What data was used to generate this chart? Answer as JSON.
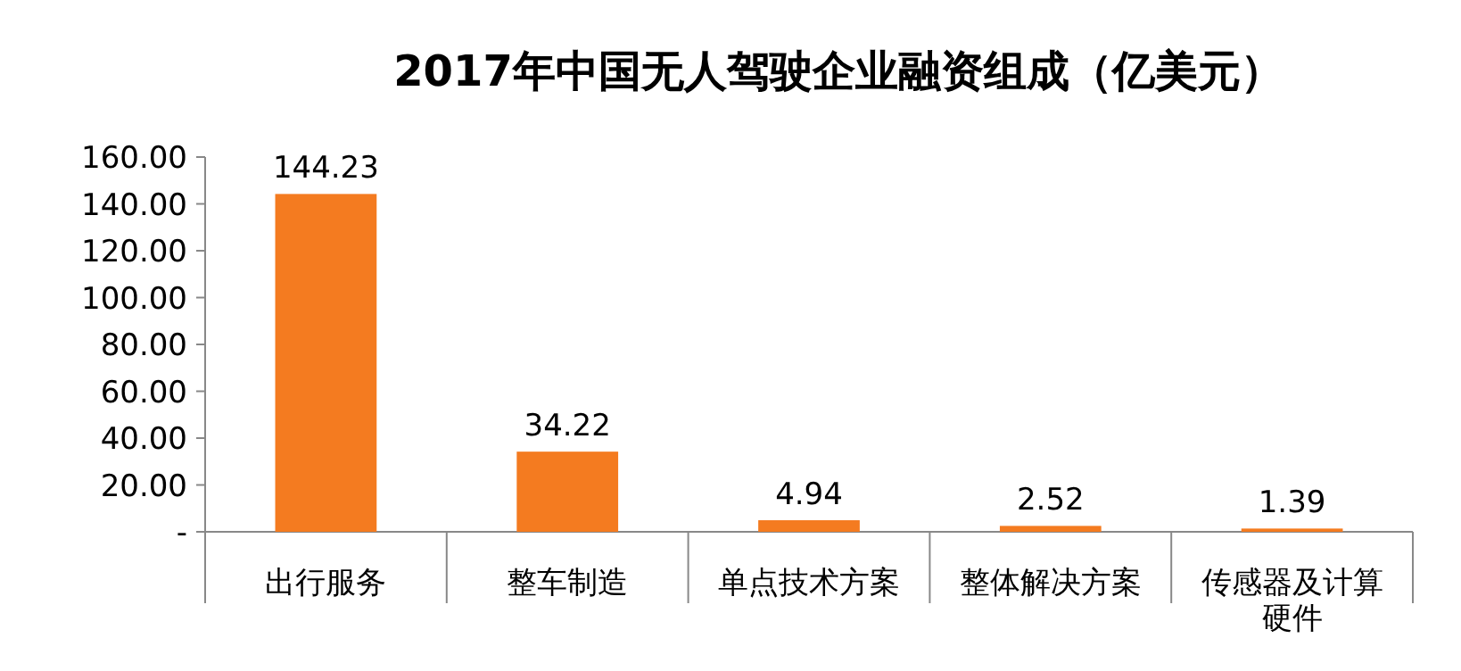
{
  "chart_data": {
    "type": "bar",
    "title": "2017年中国无人驾驶企业融资组成（亿美元）",
    "categories": [
      "出行服务",
      "整车制造",
      "单点技术方案",
      "整体解决方案",
      "传感器及计算硬件"
    ],
    "values": [
      144.23,
      34.22,
      4.94,
      2.52,
      1.39
    ],
    "color": "#f47b20",
    "ylim": [
      0,
      160
    ],
    "yticks": [
      {
        "value": 0,
        "label": "-"
      },
      {
        "value": 20,
        "label": "20.00"
      },
      {
        "value": 40,
        "label": "40.00"
      },
      {
        "value": 60,
        "label": "60.00"
      },
      {
        "value": 80,
        "label": "80.00"
      },
      {
        "value": 100,
        "label": "100.00"
      },
      {
        "value": 120,
        "label": "120.00"
      },
      {
        "value": 140,
        "label": "140.00"
      },
      {
        "value": 160,
        "label": "160.00"
      }
    ],
    "data_labels": true,
    "grid": false
  }
}
